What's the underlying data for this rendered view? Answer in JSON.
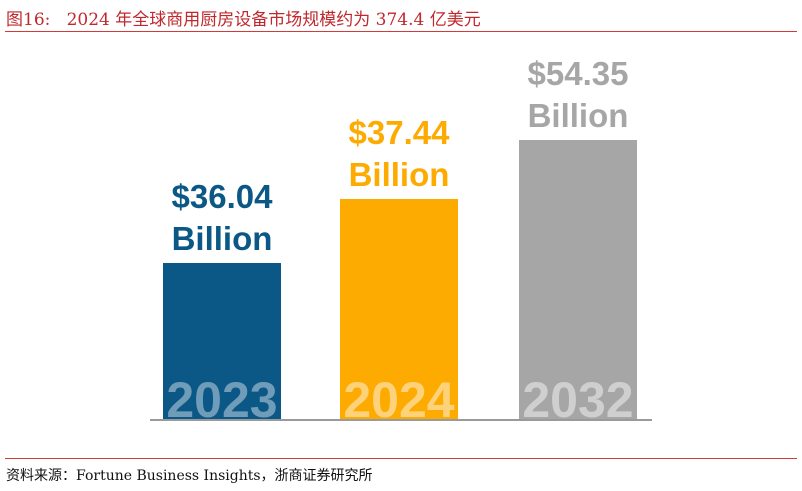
{
  "title": "图16:   2024 年全球商用厨房设备市场规模约为 374.4 亿美元",
  "source": "资料来源：Fortune Business Insights，浙商证券研究所",
  "chart_data": {
    "type": "bar",
    "categories": [
      "2023",
      "2024",
      "2032"
    ],
    "values": [
      36.04,
      37.44,
      54.35
    ],
    "data_labels": [
      {
        "amount": "$36.04",
        "unit": "Billion"
      },
      {
        "amount": "$37.44",
        "unit": "Billion"
      },
      {
        "amount": "$54.35",
        "unit": "Billion"
      }
    ],
    "colors": [
      "#0b5886",
      "#fdab00",
      "#a6a6a6"
    ],
    "label_colors": [
      "#0b5886",
      "#fdab00",
      "#a6a6a6"
    ],
    "year_label_colors": [
      "#6f9cb8",
      "#fdd27a",
      "#cfcfcf"
    ],
    "grid": false,
    "legend": "none"
  }
}
